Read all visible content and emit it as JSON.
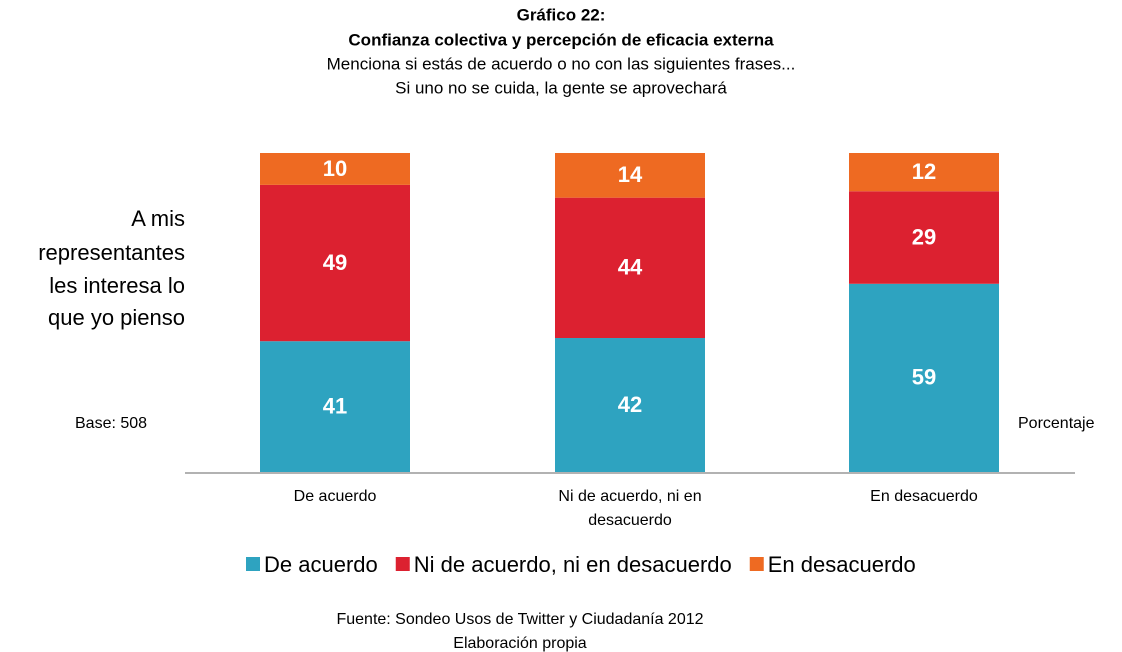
{
  "chart_data": {
    "type": "stacked_bar",
    "title": [
      "Gráfico 22:",
      "Confianza colectiva y percepción de eficacia externa"
    ],
    "subtitle": [
      "Menciona si estás de acuerdo o no con las siguientes frases...",
      "Si uno no se cuida, la gente se aprovechará"
    ],
    "y_label": [
      "A mis",
      "representantes",
      "les interesa lo",
      "que yo pienso"
    ],
    "base_note": "Base: 508",
    "unit_note": "Porcentaje",
    "categories": [
      "De acuerdo",
      "Ni de acuerdo, ni en desacuerdo",
      "En desacuerdo"
    ],
    "series": [
      {
        "name": "De acuerdo",
        "color": "#2ea3c0",
        "values": [
          41,
          42,
          59
        ]
      },
      {
        "name": "Ni de acuerdo, ni en desacuerdo",
        "color": "#dc2130",
        "values": [
          49,
          44,
          29
        ]
      },
      {
        "name": "En desacuerdo",
        "color": "#ee6a22",
        "values": [
          10,
          14,
          12
        ]
      }
    ],
    "source": [
      "Fuente: Sondeo Usos de Twitter y Ciudadanía 2012",
      "Elaboración propia"
    ]
  }
}
